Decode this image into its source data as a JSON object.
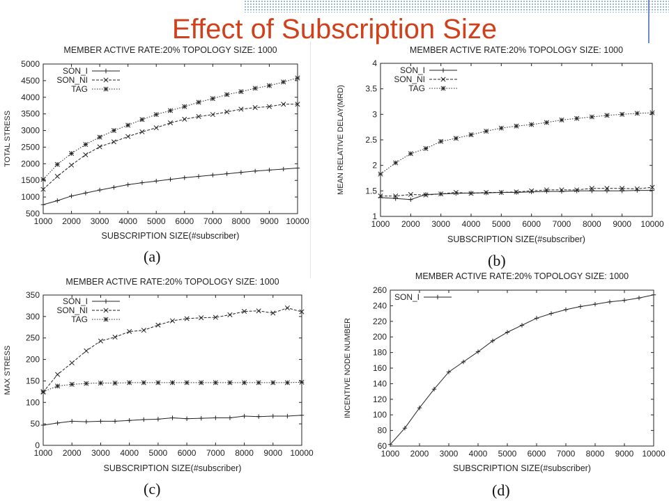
{
  "slide": {
    "title": "Effect of Subscription Size",
    "captions": [
      "(a)",
      "(b)",
      "(c)",
      "(d)"
    ]
  },
  "colors": {
    "title": "#d0401a",
    "stripe": "#8fa8d8",
    "ink": "#222222"
  },
  "chart_data": [
    {
      "type": "line",
      "title": "MEMBER ACTIVE RATE:20%  TOPOLOGY SIZE: 1000",
      "xlabel": "SUBSCRIPTION SIZE(#subscriber)",
      "ylabel": "TOTAL STRESS",
      "xlim": [
        1000,
        10000
      ],
      "ylim": [
        500,
        5000
      ],
      "xticks": [
        1000,
        2000,
        3000,
        4000,
        5000,
        6000,
        7000,
        8000,
        9000,
        10000
      ],
      "yticks": [
        500,
        1000,
        1500,
        2000,
        2500,
        3000,
        3500,
        4000,
        4500,
        5000
      ],
      "legend_position": "top-left",
      "x": [
        1000,
        1500,
        2000,
        2500,
        3000,
        3500,
        4000,
        4500,
        5000,
        5500,
        6000,
        6500,
        7000,
        7500,
        8000,
        8500,
        9000,
        9500,
        10000
      ],
      "series": [
        {
          "name": "SON_I",
          "marker": "plus",
          "dash": "solid",
          "values": [
            770,
            890,
            1030,
            1120,
            1210,
            1290,
            1370,
            1430,
            1480,
            1530,
            1580,
            1620,
            1660,
            1700,
            1740,
            1780,
            1810,
            1840,
            1870
          ]
        },
        {
          "name": "SON_NI",
          "marker": "x",
          "dash": "dashed",
          "values": [
            1230,
            1620,
            1960,
            2270,
            2510,
            2660,
            2820,
            2960,
            3080,
            3230,
            3340,
            3420,
            3480,
            3560,
            3640,
            3690,
            3720,
            3790,
            3790
          ]
        },
        {
          "name": "TAG",
          "marker": "star",
          "dash": "dotted",
          "values": [
            1530,
            1980,
            2310,
            2580,
            2800,
            3000,
            3160,
            3330,
            3480,
            3600,
            3720,
            3850,
            3960,
            4080,
            4170,
            4270,
            4350,
            4460,
            4580
          ]
        }
      ]
    },
    {
      "type": "line",
      "title": "MEMBER ACTIVE RATE:20%  TOPOLOGY SIZE: 1000",
      "xlabel": "SUBSCRIPTION SIZE(#subscriber)",
      "ylabel": "MEAN RELATIVE DELAY(MRD)",
      "xlim": [
        1000,
        10000
      ],
      "ylim": [
        1,
        4
      ],
      "xticks": [
        1000,
        2000,
        3000,
        4000,
        5000,
        6000,
        7000,
        8000,
        9000,
        10000
      ],
      "yticks": [
        1,
        1.5,
        2,
        2.5,
        3,
        3.5,
        4
      ],
      "legend_position": "top-left",
      "x": [
        1000,
        1500,
        2000,
        2500,
        3000,
        3500,
        4000,
        4500,
        5000,
        5500,
        6000,
        6500,
        7000,
        7500,
        8000,
        8500,
        9000,
        9500,
        10000
      ],
      "series": [
        {
          "name": "SON_I",
          "marker": "plus",
          "dash": "solid",
          "values": [
            1.37,
            1.35,
            1.33,
            1.43,
            1.44,
            1.45,
            1.46,
            1.46,
            1.47,
            1.47,
            1.48,
            1.49,
            1.49,
            1.5,
            1.5,
            1.5,
            1.5,
            1.51,
            1.51
          ]
        },
        {
          "name": "SON_NI",
          "marker": "x",
          "dash": "dashed",
          "values": [
            1.4,
            1.4,
            1.43,
            1.42,
            1.44,
            1.47,
            1.45,
            1.47,
            1.47,
            1.48,
            1.5,
            1.52,
            1.52,
            1.52,
            1.55,
            1.55,
            1.55,
            1.54,
            1.57
          ]
        },
        {
          "name": "TAG",
          "marker": "star",
          "dash": "dotted",
          "values": [
            1.83,
            2.05,
            2.23,
            2.33,
            2.47,
            2.53,
            2.6,
            2.67,
            2.73,
            2.77,
            2.8,
            2.84,
            2.89,
            2.92,
            2.95,
            2.98,
            3.0,
            3.02,
            3.03
          ]
        }
      ]
    },
    {
      "type": "line",
      "title": "MEMBER ACTIVE RATE:20%  TOPOLOGY SIZE: 1000",
      "xlabel": "SUBSCRIPTION SIZE(#subscriber)",
      "ylabel": "MAX STRESS",
      "xlim": [
        1000,
        10000
      ],
      "ylim": [
        0,
        350
      ],
      "xticks": [
        1000,
        2000,
        3000,
        4000,
        5000,
        6000,
        7000,
        8000,
        9000,
        10000
      ],
      "yticks": [
        0,
        50,
        100,
        150,
        200,
        250,
        300,
        350
      ],
      "legend_position": "top-left",
      "x": [
        1000,
        1500,
        2000,
        2500,
        3000,
        3500,
        4000,
        4500,
        5000,
        5500,
        6000,
        6500,
        7000,
        7500,
        8000,
        8500,
        9000,
        9500,
        10000
      ],
      "series": [
        {
          "name": "SON_I",
          "marker": "plus",
          "dash": "solid",
          "values": [
            47,
            52,
            56,
            55,
            56,
            56,
            58,
            60,
            61,
            64,
            62,
            63,
            64,
            64,
            68,
            67,
            68,
            68,
            70
          ]
        },
        {
          "name": "SON_NI",
          "marker": "x",
          "dash": "dashed",
          "values": [
            124,
            165,
            192,
            220,
            243,
            252,
            265,
            268,
            280,
            290,
            295,
            297,
            298,
            304,
            312,
            313,
            308,
            320,
            311
          ]
        },
        {
          "name": "TAG",
          "marker": "star",
          "dash": "dotted",
          "values": [
            125,
            138,
            142,
            144,
            145,
            145,
            146,
            146,
            146,
            146,
            146,
            146,
            146,
            146,
            146,
            146,
            146,
            146,
            147
          ]
        }
      ]
    },
    {
      "type": "line",
      "title": "MEMBER ACTIVE RATE:20%  TOPOLOGY SIZE: 1000",
      "xlabel": "SUBSCRIPTION SIZE(#subscriber)",
      "ylabel": "INCENTIVE NODE NUMBER",
      "xlim": [
        1000,
        10000
      ],
      "ylim": [
        60,
        260
      ],
      "xticks": [
        1000,
        2000,
        3000,
        4000,
        5000,
        6000,
        7000,
        8000,
        9000,
        10000
      ],
      "yticks": [
        60,
        80,
        100,
        120,
        140,
        160,
        180,
        200,
        220,
        240,
        260
      ],
      "legend_position": "top-left",
      "x": [
        1000,
        1500,
        2000,
        2500,
        3000,
        3500,
        4000,
        4500,
        5000,
        5500,
        6000,
        6500,
        7000,
        7500,
        8000,
        8500,
        9000,
        9500,
        10000
      ],
      "series": [
        {
          "name": "SON_I",
          "marker": "plus",
          "dash": "solid",
          "values": [
            62,
            83,
            109,
            133,
            155,
            168,
            181,
            195,
            206,
            215,
            224,
            230,
            235,
            239,
            242,
            245,
            247,
            250,
            254
          ]
        }
      ]
    }
  ]
}
